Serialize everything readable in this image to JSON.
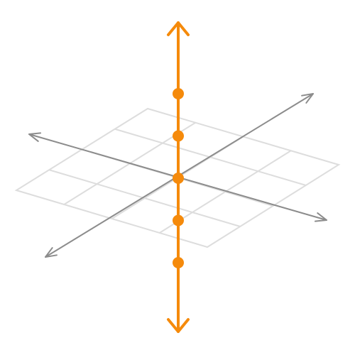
{
  "colors": {
    "background": "#ffffff",
    "grid_plane": "#dddddd",
    "horizontal_axes": "#8c8c8c",
    "vertical_axis": "#f58a0b",
    "points": "#f58a0b"
  },
  "axes": {
    "vertical": {
      "name": "vertical-axis",
      "arrows": "both-ends"
    },
    "horizontal_a": {
      "name": "horizontal-axis-a",
      "arrows": "both-ends"
    },
    "horizontal_b": {
      "name": "horizontal-axis-b",
      "arrows": "both-ends"
    }
  },
  "grid_plane": {
    "rows": 4,
    "columns": 4
  },
  "points": {
    "count": 5,
    "relative_levels": [
      2,
      1,
      0,
      -1,
      -2
    ],
    "center_point_at_origin": true
  }
}
